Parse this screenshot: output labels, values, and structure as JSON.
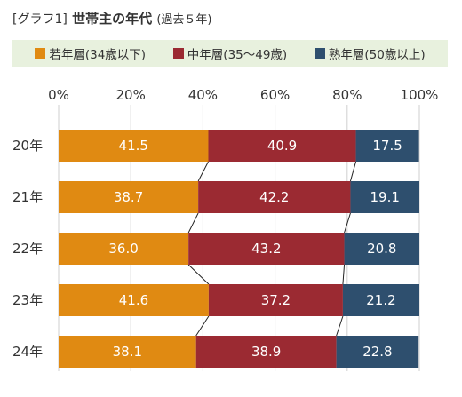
{
  "header": {
    "bracket": "[グラフ1]",
    "title": "世帯主の年代",
    "subtitle": "(過去５年)"
  },
  "chart_data": {
    "type": "bar",
    "orientation": "horizontal",
    "stacked": "percent",
    "categories": [
      "20年",
      "21年",
      "22年",
      "23年",
      "24年"
    ],
    "series": [
      {
        "name": "若年層(34歳以下)",
        "color": "#e08a12",
        "values": [
          41.5,
          38.7,
          36.0,
          41.6,
          38.1
        ],
        "labels": [
          "41.5",
          "38.7",
          "36.0",
          "41.6",
          "38.1"
        ]
      },
      {
        "name": "中年層(35〜49歳)",
        "color": "#9b2a32",
        "values": [
          40.9,
          42.2,
          43.2,
          37.2,
          38.9
        ],
        "labels": [
          "40.9",
          "42.2",
          "43.2",
          "37.2",
          "38.9"
        ]
      },
      {
        "name": "熟年層(50歳以上)",
        "color": "#2e4f6e",
        "values": [
          17.5,
          19.1,
          20.8,
          21.2,
          22.8
        ],
        "labels": [
          "17.5",
          "19.1",
          "20.8",
          "21.2",
          "22.8"
        ]
      }
    ],
    "xticks": [
      "0%",
      "20%",
      "40%",
      "60%",
      "80%",
      "100%"
    ],
    "xlim": [
      0,
      100
    ],
    "grid": true,
    "legend": "top",
    "connector_lines": true
  }
}
